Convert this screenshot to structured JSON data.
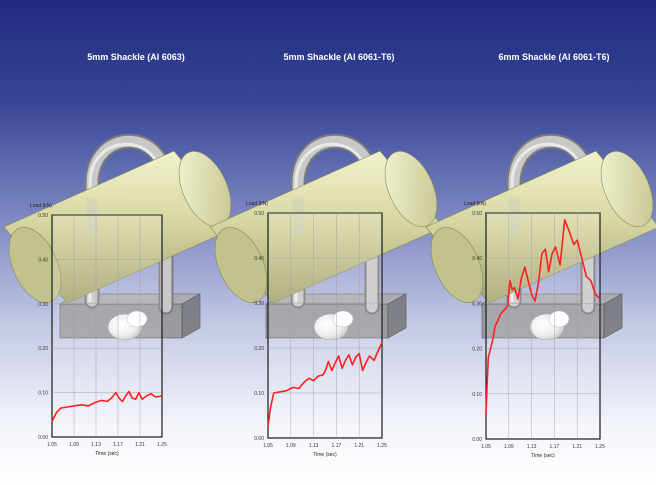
{
  "panels": [
    {
      "title": "5mm Shackle (Al 6063)",
      "ylabel": "Load (kN)",
      "xlabel": "Time (sec)",
      "y_ticks": [
        "0.00",
        "0.10",
        "0.20",
        "0.30",
        "0.40",
        "0.50"
      ],
      "x_ticks": [
        "1.05",
        "1.09",
        "1.13",
        "1.17",
        "1.21",
        "1.25"
      ]
    },
    {
      "title": "5mm Shackle (Al 6061-T6)",
      "ylabel": "Load (kN)",
      "xlabel": "Time (sec)",
      "y_ticks": [
        "0.00",
        "0.10",
        "0.20",
        "0.30",
        "0.40",
        "0.50"
      ],
      "x_ticks": [
        "1.05",
        "1.09",
        "1.13",
        "1.17",
        "1.21",
        "1.25"
      ]
    },
    {
      "title": "6mm Shackle (Al 6061-T6)",
      "ylabel": "Load (kN)",
      "xlabel": "Time (sec)",
      "y_ticks": [
        "0.00",
        "0.10",
        "0.20",
        "0.30",
        "0.40",
        "0.50"
      ],
      "x_ticks": [
        "1.05",
        "1.09",
        "1.13",
        "1.17",
        "1.21",
        "1.25"
      ]
    }
  ],
  "colors": {
    "curve": "#ff2020",
    "cylinder": "#d8d8a4",
    "shackle": "#c8c8c8",
    "block": "#707070"
  }
}
